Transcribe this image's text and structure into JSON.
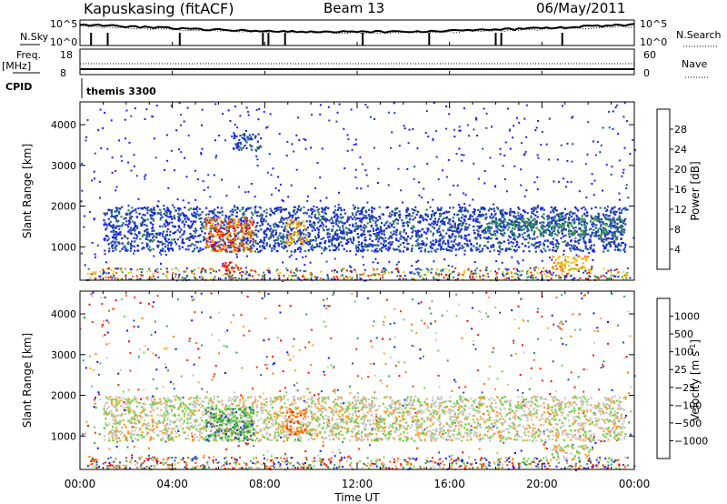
{
  "header": {
    "station": "Kapuskasing (fitACF)",
    "beam": "Beam 13",
    "date": "06/May/2011"
  },
  "status_panels": {
    "nsky_label": "N.Sky",
    "nsky_ticks": [
      "10^5",
      "10^0"
    ],
    "nsearch_label": "N.Search",
    "nsearch_ticks": [
      "10^5",
      "10^0"
    ],
    "freq_label": "Freq.",
    "freq_unit": "[MHz]",
    "freq_ticks": [
      "18",
      "8"
    ],
    "nave_label": "Nave",
    "nave_ticks": [
      "60",
      "0"
    ],
    "cpid_label": "CPID",
    "cpid_value": "themis 3300"
  },
  "chart_data": [
    {
      "type": "heatmap",
      "parameter": "power",
      "ylabel": "Slant Range [km]",
      "xlabel": "",
      "x_ticks": [
        "00:00",
        "04:00",
        "08:00",
        "12:00",
        "16:00",
        "20:00",
        "00:00"
      ],
      "xlim_hours": [
        0,
        24
      ],
      "y_ticks": [
        1000,
        2000,
        3000,
        4000
      ],
      "ylim": [
        180,
        4560
      ],
      "colorbar": {
        "label": "Power [dB]",
        "ticks": [
          "4",
          "8",
          "12",
          "16",
          "20",
          "24",
          "28"
        ],
        "colors": [
          "#1818ff",
          "#2040b0",
          "#2f7f60",
          "#3aaa40",
          "#c8d820",
          "#ffb000",
          "#ff7000",
          "#ff1000"
        ]
      },
      "regions": [
        {
          "name": "main echo band",
          "t0": 1.0,
          "t1": 23.6,
          "r0": 900,
          "r1": 2000,
          "level": 1
        },
        {
          "name": "high-range patch",
          "t0": 6.6,
          "t1": 7.8,
          "r0": 3400,
          "r1": 3800,
          "level": 1
        },
        {
          "name": "strong echoes 06-07 UT",
          "t0": 5.4,
          "t1": 7.5,
          "r0": 900,
          "r1": 1750,
          "level": 6
        },
        {
          "name": "strong echoes 09 UT",
          "t0": 8.9,
          "t1": 9.8,
          "r0": 1050,
          "r1": 1700,
          "level": 5
        },
        {
          "name": "near-range patch 07 UT",
          "t0": 6.1,
          "t1": 6.8,
          "r0": 350,
          "r1": 650,
          "level": 7
        },
        {
          "name": "near-range patch 21 UT",
          "t0": 20.4,
          "t1": 22.0,
          "r0": 450,
          "r1": 800,
          "level": 5
        },
        {
          "name": "late band",
          "t0": 17.5,
          "t1": 23.5,
          "r0": 1300,
          "r1": 1750,
          "level": 2
        }
      ]
    },
    {
      "type": "heatmap",
      "parameter": "velocity",
      "ylabel": "Slant Range [km]",
      "xlabel": "Time UT",
      "x_ticks": [
        "00:00",
        "04:00",
        "08:00",
        "12:00",
        "16:00",
        "20:00",
        "00:00"
      ],
      "xlim_hours": [
        0,
        24
      ],
      "y_ticks": [
        1000,
        2000,
        3000,
        4000
      ],
      "ylim": [
        180,
        4560
      ],
      "colorbar": {
        "label": "Velocity [m s",
        "label_sup": "-1",
        "label_close": "]",
        "ticks": [
          "1000",
          "500",
          "100",
          "25",
          "−25",
          "−100",
          "−500",
          "−1000"
        ],
        "colors": [
          "#1010ff",
          "#2850b0",
          "#30a050",
          "#70d040",
          "#c8c8c0",
          "#ffa030",
          "#ff7010",
          "#ff3000",
          "#ff0000"
        ]
      },
      "regions": [
        {
          "name": "ground scatter band",
          "t0": 1.0,
          "t1": 23.6,
          "r0": 900,
          "r1": 2000,
          "level": 4
        },
        {
          "name": "positive velocity 05-07 UT",
          "t0": 5.4,
          "t1": 7.5,
          "r0": 900,
          "r1": 1750,
          "level": 2
        },
        {
          "name": "negative velocity 09 UT",
          "t0": 8.9,
          "t1": 9.8,
          "r0": 1050,
          "r1": 1700,
          "level": 6
        },
        {
          "name": "near-range 21 UT",
          "t0": 20.4,
          "t1": 22.0,
          "r0": 450,
          "r1": 800,
          "level": 4
        }
      ]
    }
  ]
}
